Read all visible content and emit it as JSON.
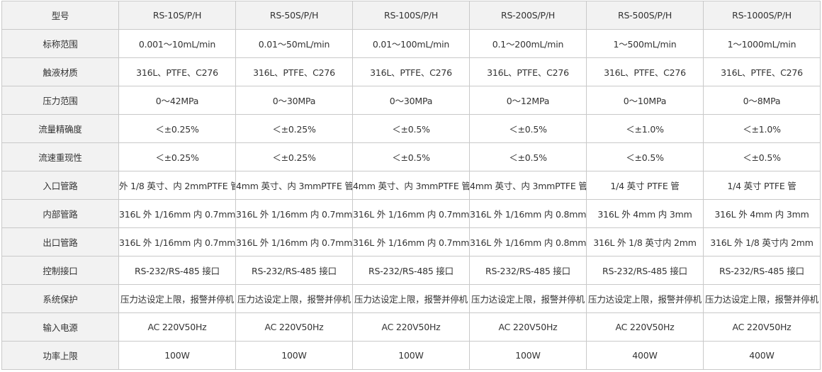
{
  "table": {
    "header": {
      "label": "型号",
      "models": [
        "RS-10S/P/H",
        "RS-50S/P/H",
        "RS-100S/P/H",
        "RS-200S/P/H",
        "RS-500S/P/H",
        "RS-1000S/P/H"
      ]
    },
    "rows": [
      {
        "label": "标称范围",
        "values": [
          "0.001～10mL/min",
          "0.01～50mL/min",
          "0.01～100mL/min",
          "0.1～200mL/min",
          "1～500mL/min",
          "1～1000mL/min"
        ]
      },
      {
        "label": "触液材质",
        "values": [
          "316L、PTFE、C276",
          "316L、PTFE、C276",
          "316L、PTFE、C276",
          "316L、PTFE、C276",
          "316L、PTFE、C276",
          "316L、PTFE、C276"
        ]
      },
      {
        "label": "压力范围",
        "values": [
          "0～42MPa",
          "0～30MPa",
          "0～30MPa",
          "0～12MPa",
          "0～10MPa",
          "0～8MPa"
        ]
      },
      {
        "label": "流量精确度",
        "values": [
          "＜±0.25%",
          "＜±0.25%",
          "＜±0.5%",
          "＜±0.5%",
          "＜±1.0%",
          "＜±1.0%"
        ]
      },
      {
        "label": "流速重现性",
        "values": [
          "＜±0.25%",
          "＜±0.25%",
          "＜±0.5%",
          "＜±0.5%",
          "＜±0.5%",
          "＜±0.5%"
        ]
      },
      {
        "label": "入口管路",
        "values": [
          "外 1/8 英寸、内 2mmPTFE 管",
          "4mm 英寸、内 3mmPTFE 管",
          "4mm 英寸、内 3mmPTFE 管",
          "4mm 英寸、内 3mmPTFE 管",
          "1/4 英寸 PTFE 管",
          "1/4 英寸 PTFE 管"
        ]
      },
      {
        "label": "内部管路",
        "values": [
          "316L 外 1/16mm 内 0.7mm",
          "316L 外 1/16mm 内 0.7mm",
          "316L 外 1/16mm 内 0.7mm",
          "316L 外 1/16mm 内 0.8mm",
          "316L 外 4mm 内 3mm",
          "316L 外 4mm 内 3mm"
        ]
      },
      {
        "label": "出口管路",
        "values": [
          "316L 外 1/16mm 内 0.7mm",
          "316L 外 1/16mm 内 0.7mm",
          "316L 外 1/16mm 内 0.7mm",
          "316L 外 1/16mm 内 0.8mm",
          "316L 外 1/8 英寸内 2mm",
          "316L 外 1/8 英寸内 2mm"
        ]
      },
      {
        "label": "控制接口",
        "values": [
          "RS-232/RS-485 接口",
          "RS-232/RS-485 接口",
          "RS-232/RS-485 接口",
          "RS-232/RS-485 接口",
          "RS-232/RS-485 接口",
          "RS-232/RS-485 接口"
        ]
      },
      {
        "label": "系统保护",
        "values": [
          "压力达设定上限，报警并停机",
          "压力达设定上限，报警并停机",
          "压力达设定上限，报警并停机",
          "压力达设定上限，报警并停机",
          "压力达设定上限，报警并停机",
          "压力达设定上限，报警并停机"
        ]
      },
      {
        "label": "输入电源",
        "values": [
          "AC 220V50Hz",
          "AC 220V50Hz",
          "AC 220V50Hz",
          "AC 220V50Hz",
          "AC 220V50Hz",
          "AC 220V50Hz"
        ]
      },
      {
        "label": "功率上限",
        "values": [
          "100W",
          "100W",
          "100W",
          "100W",
          "400W",
          "400W"
        ]
      }
    ]
  }
}
